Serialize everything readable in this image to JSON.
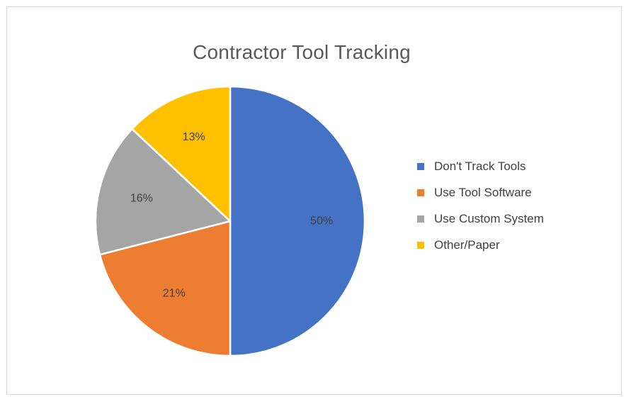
{
  "chart_data": {
    "type": "pie",
    "title": "Contractor Tool Tracking",
    "categories": [
      "Don't Track Tools",
      "Use Tool Software",
      "Use Custom System",
      "Other/Paper"
    ],
    "values": [
      50,
      21,
      16,
      13
    ],
    "data_labels": [
      "50%",
      "21%",
      "16%",
      "13%"
    ],
    "colors": [
      "#4472c4",
      "#ed7d31",
      "#a5a5a5",
      "#ffc000"
    ],
    "legend_position": "right",
    "start_angle": "12 o'clock",
    "direction": "clockwise"
  }
}
